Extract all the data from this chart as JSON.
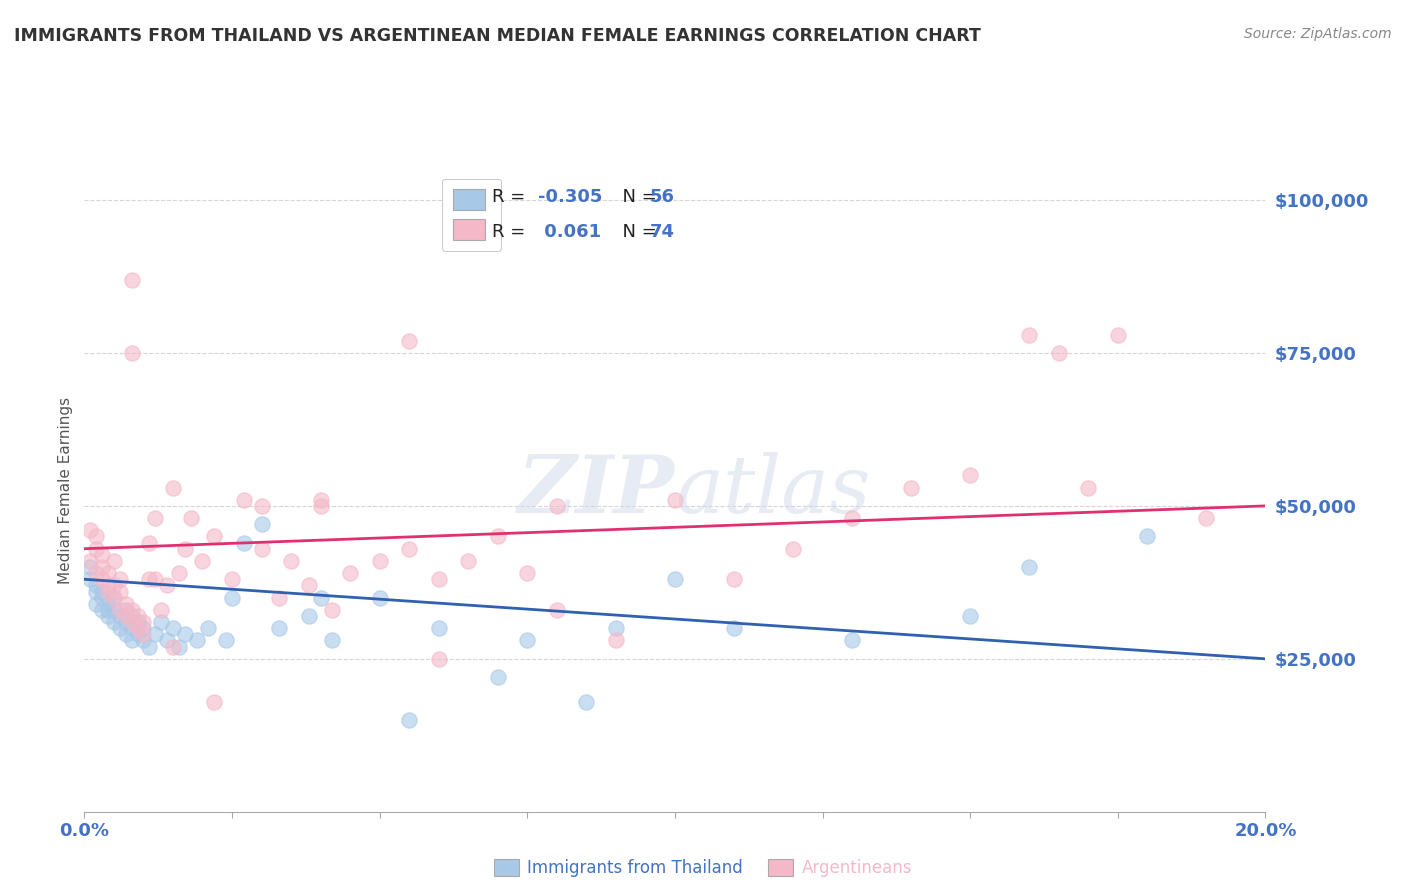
{
  "title": "IMMIGRANTS FROM THAILAND VS ARGENTINEAN MEDIAN FEMALE EARNINGS CORRELATION CHART",
  "source": "Source: ZipAtlas.com",
  "ylabel": "Median Female Earnings",
  "xmin": 0.0,
  "xmax": 0.2,
  "ymin": 0,
  "ymax": 105000,
  "yticks": [
    25000,
    50000,
    75000,
    100000
  ],
  "ytick_labels": [
    "$25,000",
    "$50,000",
    "$75,000",
    "$100,000"
  ],
  "R_blue": -0.305,
  "N_blue": 56,
  "R_pink": 0.061,
  "N_pink": 74,
  "color_blue": "#a8c8e8",
  "color_pink": "#f4b8c8",
  "line_color_blue": "#3060b0",
  "line_color_pink": "#e03070",
  "legend_label_blue": "Immigrants from Thailand",
  "legend_label_pink": "Argentineans",
  "watermark_zip": "ZIP",
  "watermark_atlas": "atlas",
  "background_color": "#ffffff",
  "grid_color": "#cccccc",
  "title_color": "#333333",
  "axis_label_color": "#4472c4",
  "legend_r_color": "#4472c4",
  "blue_scatter_x": [
    0.001,
    0.001,
    0.002,
    0.002,
    0.002,
    0.003,
    0.003,
    0.003,
    0.004,
    0.004,
    0.004,
    0.005,
    0.005,
    0.005,
    0.006,
    0.006,
    0.007,
    0.007,
    0.007,
    0.008,
    0.008,
    0.008,
    0.009,
    0.009,
    0.01,
    0.01,
    0.011,
    0.012,
    0.013,
    0.014,
    0.015,
    0.016,
    0.017,
    0.019,
    0.021,
    0.024,
    0.027,
    0.03,
    0.033,
    0.038,
    0.042,
    0.05,
    0.06,
    0.075,
    0.09,
    0.11,
    0.13,
    0.15,
    0.16,
    0.18,
    0.1,
    0.07,
    0.04,
    0.025,
    0.055,
    0.085
  ],
  "blue_scatter_y": [
    38000,
    40000,
    36000,
    34000,
    37000,
    35000,
    33000,
    36000,
    34000,
    32000,
    33000,
    31000,
    33000,
    35000,
    30000,
    32000,
    29000,
    31000,
    33000,
    30000,
    32000,
    28000,
    29000,
    31000,
    28000,
    30000,
    27000,
    29000,
    31000,
    28000,
    30000,
    27000,
    29000,
    28000,
    30000,
    28000,
    44000,
    47000,
    30000,
    32000,
    28000,
    35000,
    30000,
    28000,
    30000,
    30000,
    28000,
    32000,
    40000,
    45000,
    38000,
    22000,
    35000,
    35000,
    15000,
    18000
  ],
  "pink_scatter_x": [
    0.001,
    0.001,
    0.002,
    0.002,
    0.002,
    0.003,
    0.003,
    0.003,
    0.004,
    0.004,
    0.004,
    0.005,
    0.005,
    0.005,
    0.006,
    0.006,
    0.006,
    0.007,
    0.007,
    0.008,
    0.008,
    0.008,
    0.009,
    0.009,
    0.01,
    0.01,
    0.011,
    0.011,
    0.012,
    0.012,
    0.013,
    0.014,
    0.015,
    0.016,
    0.017,
    0.018,
    0.02,
    0.022,
    0.025,
    0.027,
    0.03,
    0.033,
    0.035,
    0.038,
    0.04,
    0.042,
    0.045,
    0.05,
    0.055,
    0.06,
    0.065,
    0.07,
    0.075,
    0.08,
    0.09,
    0.1,
    0.11,
    0.12,
    0.13,
    0.14,
    0.15,
    0.16,
    0.17,
    0.175,
    0.008,
    0.055,
    0.08,
    0.022,
    0.015,
    0.04,
    0.06,
    0.03,
    0.19,
    0.165
  ],
  "pink_scatter_y": [
    46000,
    41000,
    43000,
    39000,
    45000,
    38000,
    40000,
    42000,
    37000,
    39000,
    36000,
    35000,
    37000,
    41000,
    33000,
    36000,
    38000,
    32000,
    34000,
    31000,
    33000,
    87000,
    30000,
    32000,
    29000,
    31000,
    44000,
    38000,
    48000,
    38000,
    33000,
    37000,
    53000,
    39000,
    43000,
    48000,
    41000,
    45000,
    38000,
    51000,
    43000,
    35000,
    41000,
    37000,
    51000,
    33000,
    39000,
    41000,
    43000,
    38000,
    41000,
    45000,
    39000,
    33000,
    28000,
    51000,
    38000,
    43000,
    48000,
    53000,
    55000,
    78000,
    53000,
    78000,
    75000,
    77000,
    50000,
    18000,
    27000,
    50000,
    25000,
    50000,
    48000,
    75000
  ]
}
